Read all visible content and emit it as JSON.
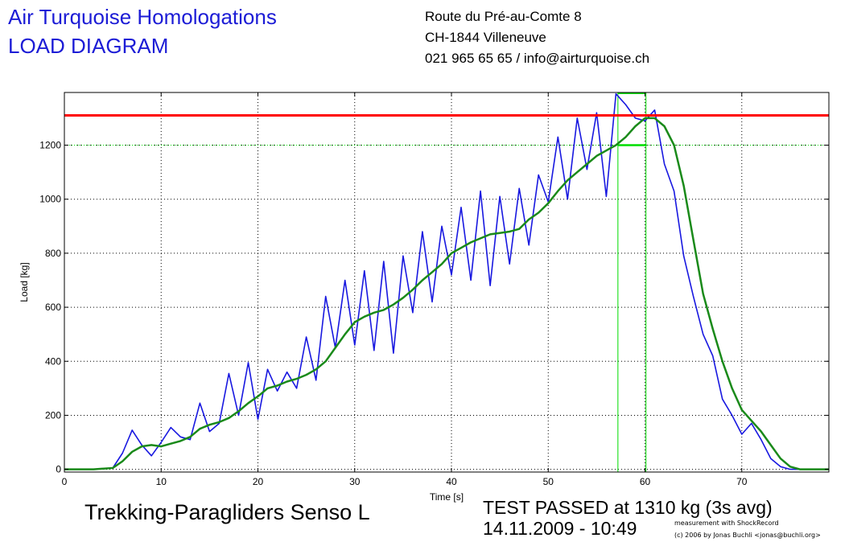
{
  "header": {
    "company": "Air Turquoise Homologations",
    "doc_type": "LOAD DIAGRAM",
    "address_line1": "Route du Pré-au-Comte 8",
    "address_line2": "CH-1844 Villeneuve",
    "contact": "021 965 65 65 / info@airturquoise.ch"
  },
  "footer": {
    "product": "Trekking-Paragliders Senso L",
    "result": "TEST PASSED at 1310 kg (3s avg)",
    "datetime": "14.11.2009 - 10:49",
    "credit_line1": "measurement with ShockRecord",
    "credit_line2": "(c) 2006 by Jonas Buchli <jonas@buchli.org>"
  },
  "colors": {
    "raw": "#1818e0",
    "avg": "#1a8a1a",
    "limit": "#ff0000",
    "marker": "#00dd00",
    "title": "#1c1cd6"
  },
  "chart_data": {
    "type": "line",
    "xlabel": "Time [s]",
    "ylabel": "Load [kg]",
    "xlim": [
      0,
      79
    ],
    "ylim": [
      -10,
      1395
    ],
    "xticks": [
      0,
      10,
      20,
      30,
      40,
      50,
      60,
      70
    ],
    "yticks": [
      0,
      200,
      400,
      600,
      800,
      1000,
      1200
    ],
    "grid": true,
    "limit_line": 1310,
    "threshold_line": 1200,
    "window": {
      "x_start": 57.2,
      "x_end": 60.1,
      "level": 1200
    },
    "series": [
      {
        "key": "raw",
        "x": [
          0,
          3,
          5,
          6,
          7,
          8,
          9,
          10,
          11,
          12,
          13,
          14,
          15,
          16,
          17,
          18,
          19,
          20,
          21,
          22,
          23,
          24,
          25,
          26,
          27,
          28,
          29,
          30,
          31,
          32,
          33,
          34,
          35,
          36,
          37,
          38,
          39,
          40,
          41,
          42,
          43,
          44,
          45,
          46,
          47,
          48,
          49,
          50,
          51,
          52,
          53,
          54,
          55,
          56,
          57,
          58,
          59,
          60,
          61,
          62,
          63,
          64,
          65,
          66,
          67,
          68,
          69,
          70,
          71,
          72,
          73,
          74,
          75,
          76,
          79
        ],
        "y": [
          0,
          0,
          5,
          60,
          145,
          90,
          50,
          100,
          155,
          120,
          110,
          245,
          140,
          170,
          355,
          200,
          395,
          185,
          370,
          290,
          360,
          300,
          490,
          330,
          640,
          450,
          700,
          460,
          735,
          440,
          770,
          430,
          790,
          580,
          880,
          620,
          900,
          720,
          970,
          700,
          1030,
          680,
          1010,
          760,
          1040,
          830,
          1090,
          990,
          1230,
          1000,
          1300,
          1110,
          1320,
          1010,
          1390,
          1350,
          1300,
          1290,
          1330,
          1130,
          1030,
          790,
          640,
          500,
          420,
          260,
          200,
          130,
          170,
          110,
          40,
          10,
          0,
          0,
          0
        ]
      },
      {
        "key": "avg",
        "x": [
          0,
          3,
          5,
          6,
          7,
          8,
          9,
          10,
          11,
          12,
          13,
          14,
          15,
          16,
          17,
          18,
          19,
          20,
          21,
          22,
          23,
          24,
          25,
          26,
          27,
          28,
          29,
          30,
          31,
          32,
          33,
          34,
          35,
          36,
          37,
          38,
          39,
          40,
          41,
          42,
          43,
          44,
          45,
          46,
          47,
          48,
          49,
          50,
          51,
          52,
          53,
          54,
          55,
          56,
          57,
          58,
          59,
          60,
          61,
          62,
          63,
          64,
          65,
          66,
          67,
          68,
          69,
          70,
          71,
          72,
          73,
          74,
          75,
          76,
          79
        ],
        "y": [
          0,
          0,
          5,
          30,
          65,
          85,
          90,
          85,
          95,
          105,
          120,
          150,
          165,
          175,
          190,
          215,
          245,
          270,
          300,
          310,
          325,
          335,
          350,
          370,
          400,
          450,
          500,
          545,
          565,
          580,
          590,
          610,
          635,
          665,
          700,
          730,
          760,
          800,
          820,
          840,
          855,
          870,
          875,
          880,
          890,
          925,
          950,
          985,
          1030,
          1070,
          1100,
          1130,
          1160,
          1180,
          1200,
          1230,
          1270,
          1300,
          1300,
          1270,
          1200,
          1050,
          850,
          650,
          520,
          400,
          300,
          220,
          180,
          140,
          90,
          40,
          10,
          0,
          0
        ]
      }
    ]
  }
}
